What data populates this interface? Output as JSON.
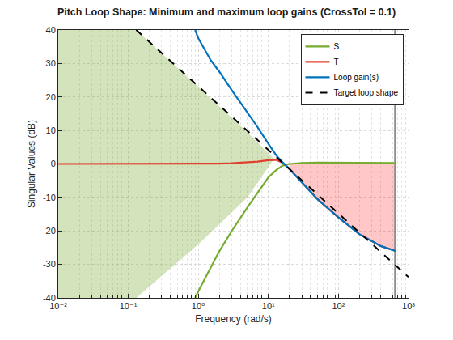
{
  "chart_data": {
    "type": "line",
    "title": "Pitch Loop Shape: Minimum and maximum loop gains (CrossTol = 0.1)",
    "x_label": "Frequency (rad/s)",
    "y_label": "Singular Values (dB)",
    "log": "x",
    "grid": true,
    "legend": "upper right",
    "xlim": [
      0.01,
      1000
    ],
    "ylim": [
      -40,
      40
    ],
    "xticks": [
      {
        "value": 0.01,
        "label": "10⁻²"
      },
      {
        "value": 0.1,
        "label": "10⁻¹"
      },
      {
        "value": 1,
        "label": "10⁰"
      },
      {
        "value": 10,
        "label": "10¹"
      },
      {
        "value": 100,
        "label": "10²"
      },
      {
        "value": 1000,
        "label": "10³"
      }
    ],
    "yticks": [
      -40,
      -30,
      -20,
      -10,
      0,
      10,
      20,
      30,
      40
    ],
    "regions": [
      {
        "color": "#77ac30",
        "x": [
          0.01,
          0.13,
          1,
          5,
          12,
          5,
          1,
          0.13,
          0.01
        ],
        "y": [
          40,
          40,
          23,
          9.5,
          1.5,
          -10,
          -24,
          -40,
          -40
        ]
      },
      {
        "color": "#ff0000",
        "x": [
          20,
          30,
          50,
          100,
          200,
          400,
          650,
          650,
          400,
          200,
          100,
          50,
          30,
          20
        ],
        "y": [
          -1.5,
          -5.5,
          -10.5,
          -16,
          -21,
          -24.5,
          -26,
          0,
          0,
          0,
          0,
          0,
          0,
          0
        ]
      }
    ],
    "vertical_line": 640,
    "series": [
      {
        "name": "S",
        "color": "#77ac30",
        "line_style": "solid",
        "x": [
          0.9,
          1,
          2,
          3,
          5,
          7,
          10,
          13,
          16,
          20,
          30,
          50,
          100,
          200,
          400,
          650
        ],
        "values": [
          -40,
          -38,
          -26,
          -20,
          -13,
          -8.5,
          -4,
          -1.8,
          -0.5,
          0,
          0.3,
          0.4,
          0.4,
          0.3,
          0.3,
          0.3
        ]
      },
      {
        "name": "T",
        "color": "#e0402e",
        "line_style": "solid",
        "x": [
          0.01,
          0.1,
          1,
          2,
          3,
          5,
          7,
          10,
          13,
          16,
          20,
          30,
          50,
          100,
          200,
          400,
          650
        ],
        "values": [
          0,
          0,
          0,
          0.1,
          0.2,
          0.4,
          0.7,
          1.1,
          1.2,
          0.3,
          -1.5,
          -5.5,
          -10.5,
          -16,
          -21,
          -24.5,
          -26
        ]
      },
      {
        "name": "Loop gain(s)",
        "color": "#0072bd",
        "line_style": "solid",
        "x": [
          0.9,
          1,
          1.5,
          2,
          3,
          5,
          7,
          10,
          13,
          16,
          20,
          30,
          50,
          100,
          200,
          400,
          650
        ],
        "values": [
          40,
          37.5,
          31,
          27.5,
          22,
          15.5,
          11,
          6,
          2.5,
          0.5,
          -1.5,
          -5.5,
          -10.5,
          -16,
          -21,
          -24.5,
          -26
        ]
      },
      {
        "name": "Target loop shape",
        "color": "#000000",
        "line_style": "dashed",
        "x": [
          0.13,
          1,
          10,
          100,
          1000
        ],
        "values": [
          40,
          23.2,
          4.2,
          -14.8,
          -33.8
        ]
      }
    ]
  }
}
